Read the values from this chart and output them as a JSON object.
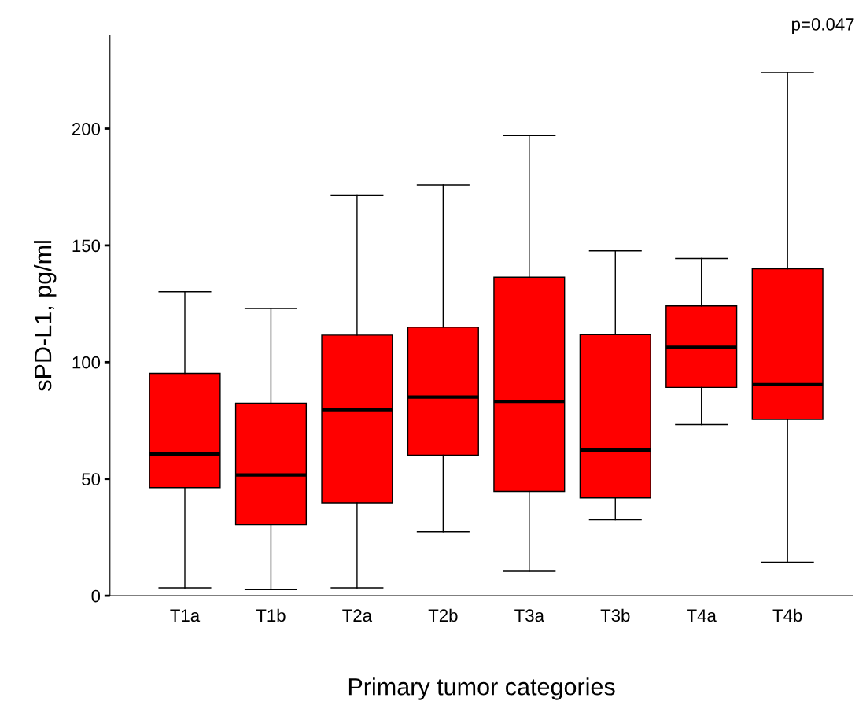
{
  "chart_data": {
    "type": "box",
    "xlabel": "Primary tumor categories",
    "ylabel": "sPD-L1, pg/ml",
    "categories": [
      "T1a",
      "T1b",
      "T2a",
      "T2b",
      "T3a",
      "T3b",
      "T4a",
      "T4b"
    ],
    "color": "#ff0000",
    "boxes": [
      {
        "low": 3.4,
        "q1": 46.3,
        "median": 60.7,
        "q3": 95.2,
        "high": 130.2
      },
      {
        "low": 2.6,
        "q1": 30.5,
        "median": 51.7,
        "q3": 82.4,
        "high": 123
      },
      {
        "low": 3.4,
        "q1": 39.8,
        "median": 79.7,
        "q3": 111.6,
        "high": 171.4
      },
      {
        "low": 27.4,
        "q1": 60.2,
        "median": 85.1,
        "q3": 115,
        "high": 175.9
      },
      {
        "low": 10.5,
        "q1": 44.7,
        "median": 83.2,
        "q3": 136.4,
        "high": 197
      },
      {
        "low": 32.5,
        "q1": 41.9,
        "median": 62.4,
        "q3": 111.8,
        "high": 147.7
      },
      {
        "low": 73.3,
        "q1": 89.2,
        "median": 106.4,
        "q3": 124.1,
        "high": 144.4
      },
      {
        "low": 14.4,
        "q1": 75.5,
        "median": 90.4,
        "q3": 140,
        "high": 224.1
      }
    ],
    "ylim": [
      0,
      240
    ],
    "yticks": [
      0,
      50,
      100,
      150,
      200
    ],
    "grid": false,
    "annotations": [
      "p=0.047"
    ]
  }
}
